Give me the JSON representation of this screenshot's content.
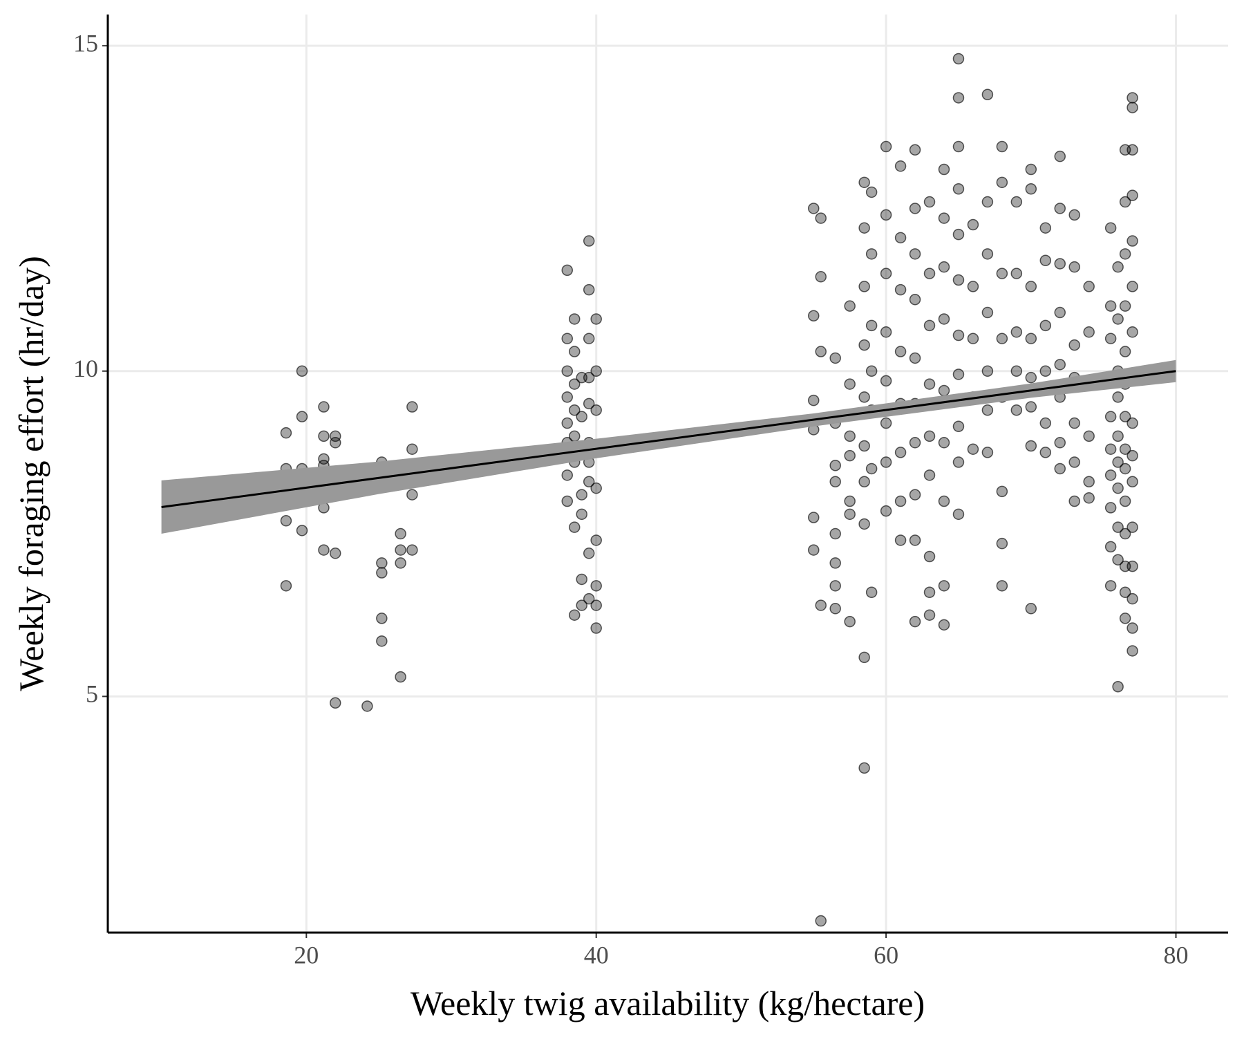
{
  "chart_data": {
    "type": "scatter",
    "xlabel": "Weekly twig availability (kg/hectare)",
    "ylabel": "Weekly foraging effort (hr/day)",
    "xlim": [
      6.3,
      83.6
    ],
    "ylim": [
      1.37,
      15.48
    ],
    "xticks": [
      20,
      40,
      60,
      80
    ],
    "yticks": [
      5,
      10,
      15
    ],
    "grid": true,
    "points": {
      "color": "#000000",
      "opacity": 0.35,
      "x": [
        18.6,
        18.6,
        18.6,
        18.6,
        18.6,
        18.6,
        19.7,
        19.7,
        19.7,
        19.7,
        19.7,
        21.2,
        21.2,
        21.2,
        21.2,
        21.2,
        21.2,
        21.2,
        22,
        22,
        22,
        22,
        22,
        24.2,
        25.2,
        25.2,
        25.2,
        25.2,
        25.2,
        26.5,
        26.5,
        26.5,
        26.5,
        27.3,
        27.3,
        27.3,
        27.3,
        27.3,
        38,
        38,
        38,
        38,
        38,
        38,
        38,
        38,
        38,
        38.5,
        38.5,
        38.5,
        38.5,
        38.5,
        38.5,
        38.5,
        38.5,
        39,
        39,
        39,
        39,
        39,
        39,
        39,
        39.5,
        39.5,
        39.5,
        39.5,
        39.5,
        39.5,
        39.5,
        39.5,
        39.5,
        39.5,
        40,
        40,
        40,
        40,
        40,
        40,
        40,
        40,
        55,
        55,
        55,
        55,
        55,
        55,
        55.5,
        55.5,
        55.5,
        55.5,
        55.5,
        56.5,
        56.5,
        56.5,
        56.5,
        56.5,
        56.5,
        56.5,
        56.5,
        57.5,
        57.5,
        57.5,
        57.5,
        57.5,
        57.5,
        57.5,
        58.5,
        58.5,
        58.5,
        58.5,
        58.5,
        58.5,
        58.5,
        58.5,
        58.5,
        58.5,
        59,
        59,
        59,
        59,
        59,
        59,
        59,
        60,
        60,
        60,
        60,
        60,
        60,
        60,
        60,
        61,
        61,
        61,
        61,
        61,
        61,
        61,
        61,
        62,
        62,
        62,
        62,
        62,
        62,
        62,
        62,
        62,
        62,
        63,
        63,
        63,
        63,
        63,
        63,
        63,
        63,
        63,
        64,
        64,
        64,
        64,
        64,
        64,
        64,
        64,
        64,
        65,
        65,
        65,
        65,
        65,
        65,
        65,
        65,
        65,
        65,
        65,
        66,
        66,
        66,
        66,
        66,
        67,
        67,
        67,
        67,
        67,
        67,
        67,
        68,
        68,
        68,
        68,
        68,
        68,
        68,
        68,
        69,
        69,
        69,
        69,
        69,
        70,
        70,
        70,
        70,
        70,
        70,
        70,
        70,
        71,
        71,
        71,
        71,
        71,
        71,
        72,
        72,
        72,
        72,
        72,
        72,
        72,
        72,
        73,
        73,
        73,
        73,
        73,
        73,
        73,
        74,
        74,
        74,
        74,
        74,
        74,
        75.5,
        75.5,
        75.5,
        75.5,
        75.5,
        75.5,
        75.5,
        75.5,
        75.5,
        75.5,
        76,
        76,
        76,
        76,
        76,
        76,
        76,
        76,
        76,
        76,
        76.5,
        76.5,
        76.5,
        76.5,
        76.5,
        76.5,
        76.5,
        76.5,
        76.5,
        76.5,
        76.5,
        76.5,
        76.5,
        76.5,
        77,
        77,
        77,
        77,
        77,
        77,
        77,
        77,
        77,
        77,
        77,
        77,
        77,
        77,
        77,
        77
      ],
      "y": [
        9.05,
        8.5,
        8.3,
        8.0,
        7.7,
        6.7,
        10.0,
        9.3,
        8.5,
        8.3,
        7.55,
        9.45,
        9.0,
        8.65,
        8.55,
        8.15,
        7.9,
        7.25,
        9.0,
        8.9,
        8.35,
        7.2,
        4.9,
        4.85,
        8.6,
        7.05,
        6.9,
        6.2,
        5.85,
        7.5,
        7.25,
        7.05,
        5.3,
        9.45,
        8.8,
        8.5,
        8.1,
        7.25,
        11.55,
        10.5,
        10.0,
        9.6,
        9.2,
        8.9,
        8.7,
        8.4,
        8.0,
        10.8,
        10.3,
        9.8,
        9.4,
        9.0,
        8.6,
        7.6,
        6.25,
        9.9,
        9.3,
        8.8,
        8.1,
        7.8,
        6.8,
        6.4,
        12.0,
        11.25,
        10.5,
        9.9,
        9.5,
        8.9,
        8.6,
        8.3,
        7.2,
        6.5,
        10.8,
        10.0,
        9.4,
        8.2,
        7.4,
        6.7,
        6.4,
        6.05,
        12.5,
        10.85,
        9.55,
        9.1,
        7.75,
        7.25,
        12.35,
        11.45,
        10.3,
        6.4,
        1.55,
        10.2,
        9.2,
        8.55,
        8.3,
        7.5,
        7.05,
        6.7,
        6.35,
        11.0,
        9.8,
        9.0,
        8.7,
        8.0,
        7.8,
        6.15,
        12.9,
        12.2,
        11.3,
        10.4,
        9.6,
        8.85,
        8.3,
        7.65,
        5.6,
        3.9,
        12.75,
        11.8,
        10.7,
        10.0,
        9.4,
        8.5,
        6.6,
        13.45,
        12.4,
        11.5,
        10.6,
        9.85,
        9.2,
        8.6,
        7.85,
        13.15,
        12.05,
        11.25,
        10.3,
        9.5,
        8.75,
        8.0,
        7.4,
        13.4,
        12.5,
        11.8,
        11.1,
        10.2,
        9.5,
        8.9,
        8.1,
        7.4,
        6.15,
        12.6,
        11.5,
        10.7,
        9.8,
        9.0,
        8.4,
        7.15,
        6.6,
        6.25,
        13.1,
        12.35,
        11.6,
        10.8,
        9.7,
        8.9,
        8.0,
        6.7,
        6.1,
        14.8,
        14.2,
        13.45,
        12.8,
        12.1,
        11.4,
        10.55,
        9.95,
        9.15,
        8.6,
        7.8,
        12.25,
        11.3,
        10.5,
        9.6,
        8.8,
        14.25,
        12.6,
        11.8,
        10.9,
        10.0,
        9.4,
        8.75,
        13.45,
        12.9,
        11.5,
        10.5,
        9.6,
        8.15,
        7.35,
        6.7,
        12.6,
        11.5,
        10.6,
        10.0,
        9.4,
        13.1,
        12.8,
        11.3,
        10.5,
        9.9,
        9.45,
        8.85,
        6.35,
        12.2,
        11.7,
        10.7,
        10.0,
        9.2,
        8.75,
        13.3,
        12.5,
        11.65,
        10.9,
        10.1,
        9.6,
        8.9,
        8.5,
        12.4,
        11.6,
        10.4,
        9.9,
        9.2,
        8.6,
        8.0,
        11.3,
        10.6,
        9.8,
        9.0,
        8.3,
        8.05,
        12.2,
        11.0,
        10.5,
        9.9,
        9.3,
        8.8,
        8.4,
        7.9,
        7.3,
        6.7,
        11.6,
        10.8,
        10.0,
        9.6,
        9.0,
        8.6,
        8.2,
        7.6,
        7.1,
        5.15,
        13.4,
        12.6,
        11.8,
        11.0,
        10.3,
        9.8,
        9.3,
        8.8,
        8.5,
        8.0,
        7.5,
        7.0,
        6.6,
        6.2,
        14.2,
        14.05,
        13.4,
        12.7,
        12.0,
        11.3,
        10.6,
        9.9,
        9.2,
        8.7,
        8.3,
        7.6,
        7.0,
        6.5,
        6.05,
        5.7
      ]
    },
    "band": {
      "color": "#999999",
      "x": [
        10,
        25,
        40,
        55,
        70,
        80
      ],
      "lower": [
        7.5,
        8.11,
        8.66,
        9.15,
        9.59,
        9.83
      ],
      "upper": [
        8.32,
        8.61,
        8.96,
        9.35,
        9.81,
        10.17
      ]
    },
    "fit": {
      "color": "#000000",
      "x": [
        10,
        80
      ],
      "y": [
        7.91,
        10.0
      ]
    }
  }
}
